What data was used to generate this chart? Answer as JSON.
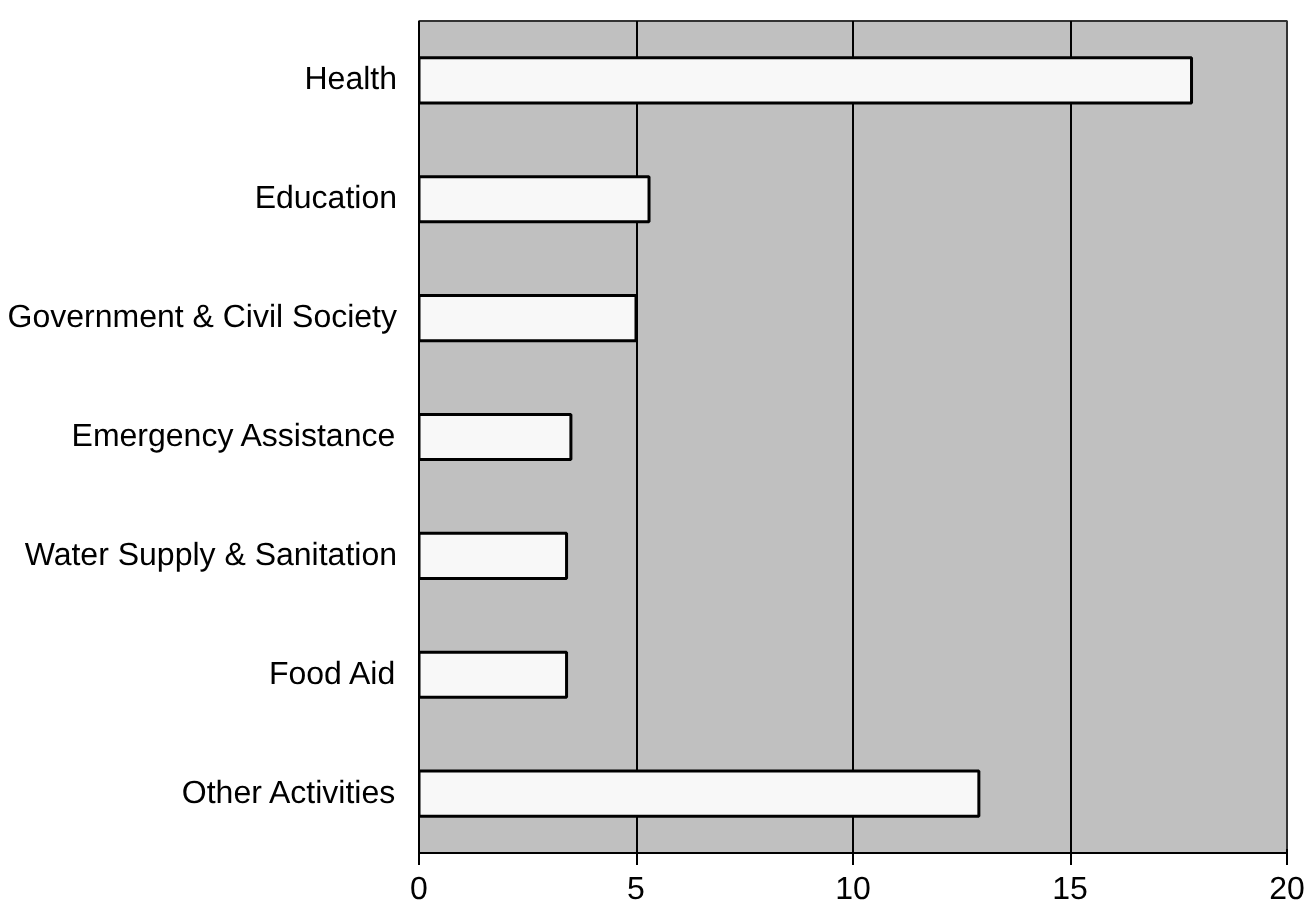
{
  "chart_data": {
    "type": "bar",
    "orientation": "horizontal",
    "categories": [
      "Health",
      "Education",
      "Government & Civil Society",
      "Emergency Assistance",
      "Water Supply & Sanitation",
      "Food Aid",
      "Other Activities"
    ],
    "values": [
      17.8,
      5.3,
      5.0,
      3.5,
      3.4,
      3.4,
      12.9
    ],
    "color": "#f8f8f8",
    "xlim": [
      0,
      20
    ],
    "xticks": [
      0,
      5,
      10,
      15,
      20
    ],
    "grid": "x"
  }
}
